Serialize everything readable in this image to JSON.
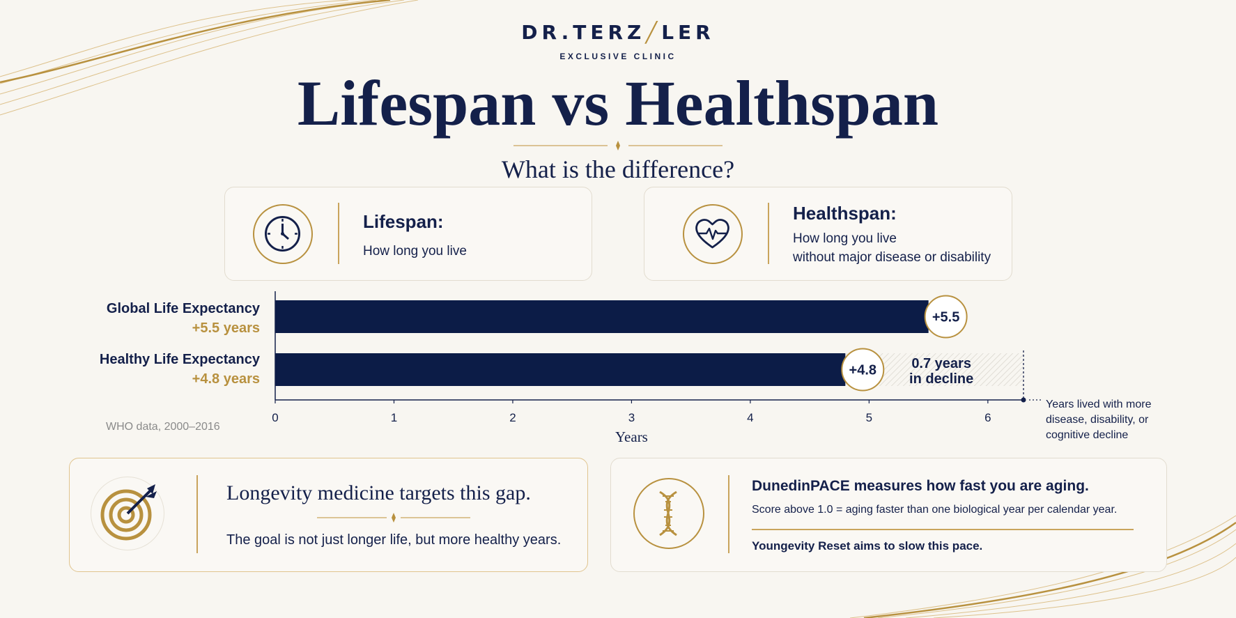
{
  "brand": {
    "prefix": "DR.TERZ",
    "mark": "╱",
    "suffix": "LER",
    "sub": "EXCLUSIVE CLINIC"
  },
  "title": "Lifespan vs Healthspan",
  "subtitle": "What is the difference?",
  "cards": {
    "lifespan": {
      "heading": "Lifespan:",
      "text": "How long you live",
      "icon": "clock-icon"
    },
    "healthspan": {
      "heading": "Healthspan:",
      "text_line1": "How long you live",
      "text_line2": "without major disease or disability",
      "icon": "heart-pulse-icon"
    }
  },
  "chart_data": {
    "type": "bar",
    "orientation": "horizontal",
    "categories": [
      "Global Life Expectancy",
      "Healthy Life Expectancy"
    ],
    "category_sublabels": [
      "+5.5 years",
      "+4.8 years"
    ],
    "values": [
      5.5,
      4.8
    ],
    "data_labels": [
      "+5.5",
      "+4.8"
    ],
    "xlabel": "Years",
    "xlim": [
      0,
      6.3
    ],
    "xticks": [
      0,
      1,
      2,
      3,
      4,
      5,
      6
    ],
    "gap_annotation": {
      "from": 4.8,
      "to": 6.3,
      "line1": "0.7 years",
      "line2": "in decline"
    },
    "gap_note": [
      "Years lived with more",
      "disease, disability, or",
      "cognitive decline"
    ],
    "source": "WHO data, 2000–2016",
    "colors": {
      "bar": "#0c1c47",
      "accent": "#b8913f"
    }
  },
  "bottom": {
    "left": {
      "heading": "Longevity medicine targets this gap.",
      "text": "The goal is not just longer life, but more healthy years.",
      "icon": "target-arrow-icon"
    },
    "right": {
      "heading": "DunedinPACE measures how fast you are aging.",
      "text": "Score above 1.0 = aging faster than one biological year per calendar year.",
      "note": "Youngevity Reset aims to slow this pace.",
      "icon": "dna-icon"
    }
  },
  "colors": {
    "navy": "#14204a",
    "gold": "#b8913f",
    "background": "#f8f6f1"
  }
}
